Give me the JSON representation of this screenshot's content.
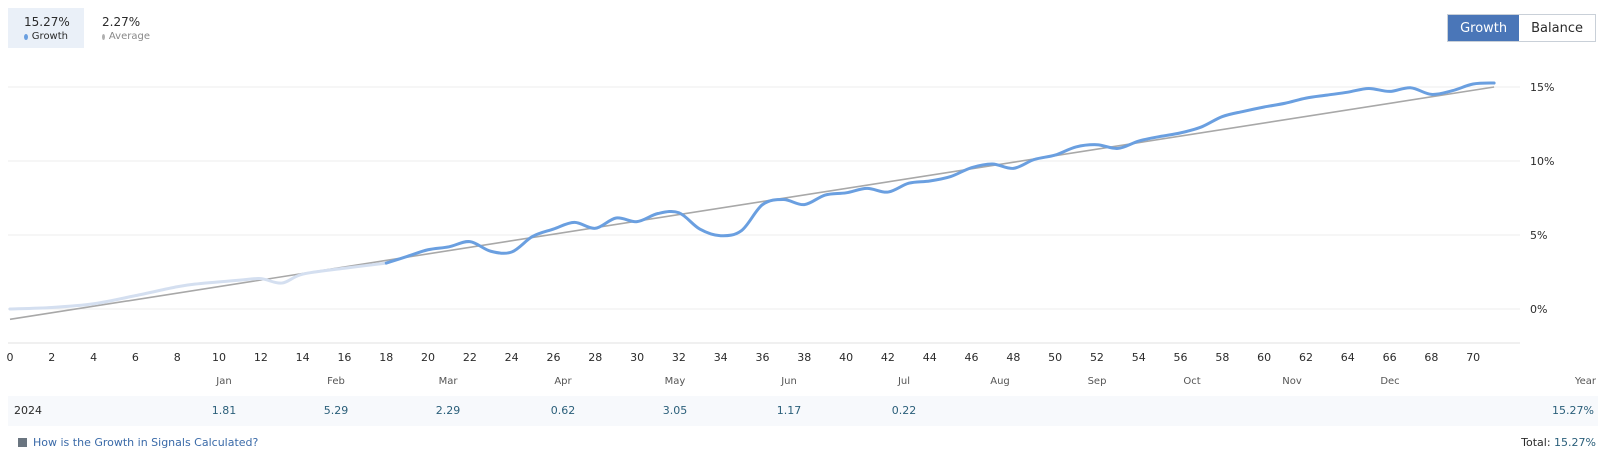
{
  "legend": {
    "growth": {
      "value": "15.27%",
      "label": "Growth",
      "color": "#6a9fe0"
    },
    "average": {
      "value": "2.27%",
      "label": "Average",
      "color": "#b0b0b0"
    }
  },
  "toggle": {
    "growth_label": "Growth",
    "balance_label": "Balance"
  },
  "chart_data": {
    "type": "line",
    "xlim": [
      0,
      72
    ],
    "ylim": [
      -2.3,
      17.5
    ],
    "x_ticks": [
      0,
      2,
      4,
      6,
      8,
      10,
      12,
      14,
      16,
      18,
      20,
      22,
      24,
      26,
      28,
      30,
      32,
      34,
      36,
      38,
      40,
      42,
      44,
      46,
      48,
      50,
      52,
      54,
      56,
      58,
      60,
      62,
      64,
      66,
      68,
      70
    ],
    "y_ticks": [
      0,
      5,
      10,
      15
    ],
    "y_tick_labels": [
      "0%",
      "5%",
      "10%",
      "15%"
    ],
    "series": [
      {
        "name": "Growth",
        "color": "#6a9fe0",
        "faded_color": "#d4dff0",
        "faded_until": 18,
        "x": [
          0,
          2,
          4,
          6,
          8,
          9,
          11,
          12,
          13,
          14,
          16,
          18,
          19,
          20,
          21,
          22,
          23,
          24,
          25,
          26,
          27,
          28,
          29,
          30,
          31,
          32,
          33,
          34,
          35,
          36,
          37,
          38,
          39,
          40,
          41,
          42,
          43,
          44,
          45,
          46,
          47,
          48,
          49,
          50,
          51,
          52,
          53,
          54,
          55,
          56,
          57,
          58,
          59,
          60,
          61,
          62,
          63,
          64,
          65,
          66,
          67,
          68,
          69,
          70,
          71
        ],
        "y": [
          0,
          0.1,
          0.35,
          0.9,
          1.5,
          1.7,
          1.95,
          2.05,
          1.75,
          2.35,
          2.75,
          3.1,
          3.55,
          4.0,
          4.2,
          4.55,
          3.9,
          3.85,
          4.9,
          5.4,
          5.85,
          5.45,
          6.15,
          5.9,
          6.45,
          6.5,
          5.4,
          4.95,
          5.3,
          7.05,
          7.4,
          7.05,
          7.7,
          7.85,
          8.15,
          7.9,
          8.5,
          8.65,
          8.95,
          9.55,
          9.8,
          9.5,
          10.1,
          10.4,
          10.95,
          11.1,
          10.85,
          11.35,
          11.65,
          11.9,
          12.3,
          13.0,
          13.35,
          13.65,
          13.9,
          14.25,
          14.45,
          14.65,
          14.9,
          14.7,
          14.95,
          14.5,
          14.75,
          15.2,
          15.27
        ]
      },
      {
        "name": "Average",
        "color": "#a8a8a8",
        "x": [
          0,
          71
        ],
        "y": [
          -0.7,
          15.0
        ]
      }
    ]
  },
  "months_header": [
    "Jan",
    "Feb",
    "Mar",
    "Apr",
    "May",
    "Jun",
    "Jul",
    "Aug",
    "Sep",
    "Oct",
    "Nov",
    "Dec"
  ],
  "year_header": "Year",
  "year_row": {
    "year": "2024",
    "values": [
      "1.81",
      "5.29",
      "2.29",
      "0.62",
      "3.05",
      "1.17",
      "0.22",
      "",
      "",
      "",
      "",
      ""
    ],
    "total": "15.27%"
  },
  "footer": {
    "link_text": "How is the Growth in Signals Calculated?",
    "total_label": "Total:",
    "total_value": "15.27%"
  }
}
